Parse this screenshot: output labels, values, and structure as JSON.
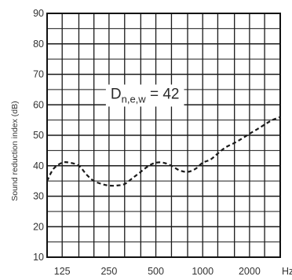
{
  "chart_data": {
    "type": "line",
    "title": "",
    "xlabel": "",
    "ylabel": "Sound reduction index (dB)",
    "ylim": [
      10,
      90
    ],
    "y_ticks": [
      "10",
      "20",
      "30",
      "40",
      "50",
      "60",
      "70",
      "80",
      "90"
    ],
    "x_scale": "log",
    "x_unit": "Hz",
    "x_ticks": [
      "125",
      "250",
      "500",
      "1000",
      "2000"
    ],
    "grid": true,
    "line_style": "dashed",
    "series": [
      {
        "x": [
          100,
          110,
          125,
          140,
          160,
          180,
          200,
          225,
          250,
          280,
          315,
          355,
          400,
          450,
          500,
          560,
          630,
          710,
          800,
          900,
          1000,
          1120,
          1250,
          1400,
          1600,
          1800,
          2000,
          2240,
          2500,
          2800,
          3150
        ],
        "values": [
          35,
          39,
          41,
          41,
          40,
          37,
          35,
          34,
          33.5,
          33.5,
          34,
          36,
          38,
          40,
          41,
          41,
          40,
          38.5,
          38,
          39,
          41,
          42,
          44,
          46,
          47.5,
          49,
          50.5,
          52,
          53.5,
          55,
          56
        ]
      }
    ],
    "annotations": [
      {
        "main": "D",
        "sub": "n,e,w",
        "text": " = 42"
      }
    ]
  }
}
